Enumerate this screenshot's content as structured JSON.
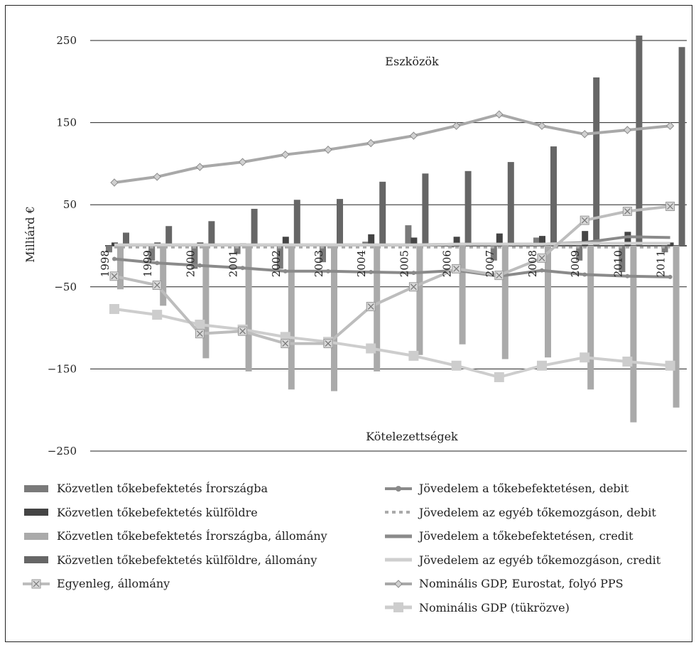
{
  "chart_data": {
    "type": "bar",
    "ylabel": "Milliárd €",
    "ylim": [
      -250,
      250
    ],
    "yticks": [
      250,
      150,
      50,
      -50,
      -150,
      -250
    ],
    "ytick_labels": [
      "250",
      "150",
      "50",
      "−50",
      "−150",
      "−250"
    ],
    "categories": [
      "1998",
      "1999",
      "2000",
      "2001",
      "2002",
      "2003",
      "2004",
      "2005",
      "2006",
      "2007",
      "2008",
      "2009",
      "2010",
      "2011"
    ],
    "annotations": {
      "top": "Eszközök",
      "bottom": "Kötelezettségek"
    },
    "bar_series": [
      {
        "name": "Közvetlen tőkebefektetés Írországba",
        "color": "#7a7a7a",
        "values": [
          -8,
          -18,
          -28,
          -10,
          -28,
          -20,
          5,
          25,
          -2,
          -18,
          10,
          -18,
          -32,
          -8
        ]
      },
      {
        "name": "Közvetlen tőkebefektetés külföldre",
        "color": "#444444",
        "values": [
          4,
          4,
          4,
          3,
          11,
          2,
          14,
          10,
          11,
          15,
          12,
          18,
          17,
          4
        ]
      },
      {
        "name": "Közvetlen tőkebefektetés Írországba, állomány",
        "color": "#aaaaaa",
        "values": [
          -53,
          -73,
          -137,
          -153,
          -175,
          -177,
          -153,
          -133,
          -120,
          -138,
          -136,
          -175,
          -215,
          -197
        ]
      },
      {
        "name": "Közvetlen tőkebefektetés külföldre, állomány",
        "color": "#666666",
        "values": [
          16,
          24,
          30,
          45,
          56,
          57,
          78,
          88,
          91,
          102,
          121,
          205,
          256,
          242
        ]
      }
    ],
    "line_series": [
      {
        "name": "Jövedelem a tőkebefektetésen, debit",
        "color": "#8a8a8a",
        "style": "line-dot",
        "values": [
          -16,
          -21,
          -24,
          -27,
          -31,
          -31,
          -32,
          -33,
          -30,
          -37,
          -30,
          -35,
          -37,
          -38
        ]
      },
      {
        "name": "Jövedelem az egyéb tőkemozgáson, debit",
        "color": "#aaaaaa",
        "style": "dashed",
        "values": [
          -2,
          -2,
          -2,
          -2,
          -2,
          -2,
          -2,
          -2,
          -2,
          -2,
          -2,
          -2,
          -2,
          -2
        ]
      },
      {
        "name": "Jövedelem a tőkebefektetésen, credit",
        "color": "#8a8a8a",
        "style": "line",
        "values": [
          1,
          1,
          1,
          1,
          1,
          1,
          1,
          1,
          2,
          2,
          2,
          4,
          11,
          10
        ]
      },
      {
        "name": "Jövedelem az egyéb tőkemozgáson, credit",
        "color": "#cfcfcf",
        "style": "line",
        "values": [
          1,
          1,
          1,
          1,
          1,
          1,
          1,
          1,
          2,
          2,
          2,
          3,
          3,
          3
        ]
      },
      {
        "name": "Nominális GDP, Eurostat, folyó PPS",
        "color": "#a8a8a8",
        "style": "diamond",
        "values": [
          77,
          84,
          96,
          102,
          111,
          117,
          125,
          134,
          146,
          160,
          146,
          136,
          141,
          146
        ]
      },
      {
        "name": "Nominális GDP (tükrözve)",
        "color": "#cdcdcd",
        "style": "square",
        "values": [
          -77,
          -84,
          -96,
          -102,
          -111,
          -117,
          -125,
          -134,
          -146,
          -160,
          -146,
          -136,
          -141,
          -146
        ]
      },
      {
        "name": "Egyenleg, állomány",
        "color": "#bdbdbd",
        "style": "x-square",
        "values": [
          -37,
          -48,
          -107,
          -104,
          -119,
          -119,
          -74,
          -50,
          -28,
          -36,
          -15,
          31,
          42,
          48
        ]
      }
    ]
  },
  "legend": [
    {
      "label": "Közvetlen tőkebefektetés Írországba",
      "swatch": "bar",
      "color": "#7a7a7a"
    },
    {
      "label": "Jövedelem a tőkebefektetésen, debit",
      "swatch": "line-dot",
      "color": "#8a8a8a"
    },
    {
      "label": "Közvetlen tőkebefektetés külföldre",
      "swatch": "bar",
      "color": "#444444"
    },
    {
      "label": "Jövedelem az egyéb tőkemozgáson, debit",
      "swatch": "dashed",
      "color": "#aaaaaa"
    },
    {
      "label": "Közvetlen tőkebefektetés Írországba, állomány",
      "swatch": "bar",
      "color": "#aaaaaa"
    },
    {
      "label": "Jövedelem a tőkebefektetésen, credit",
      "swatch": "line",
      "color": "#8a8a8a"
    },
    {
      "label": "Közvetlen tőkebefektetés külföldre, állomány",
      "swatch": "bar",
      "color": "#666666"
    },
    {
      "label": "Jövedelem az egyéb tőkemozgáson, credit",
      "swatch": "line",
      "color": "#cfcfcf"
    },
    {
      "label": "Egyenleg, állomány",
      "swatch": "x-square",
      "color": "#bdbdbd"
    },
    {
      "label": "Nominális GDP, Eurostat, folyó PPS",
      "swatch": "diamond",
      "color": "#a8a8a8"
    },
    {
      "label": "",
      "swatch": "none",
      "color": "#ffffff"
    },
    {
      "label": "Nominális GDP (tükrözve)",
      "swatch": "square",
      "color": "#cdcdcd"
    }
  ]
}
